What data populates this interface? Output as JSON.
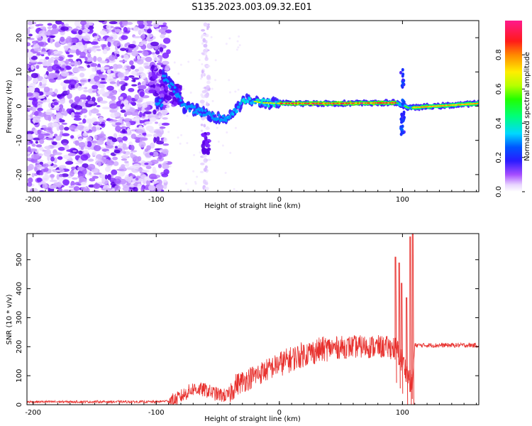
{
  "figure": {
    "title": "S135.2023.003.09.32.E01"
  },
  "chart_data": [
    {
      "type": "heatmap",
      "xlabel": "Height of straight line (km)",
      "ylabel": "Frequency (Hz)",
      "xlim": [
        -205,
        162
      ],
      "ylim": [
        -25,
        25
      ],
      "x_ticks": [
        -200,
        -100,
        0,
        100
      ],
      "y_ticks": [
        -20,
        -10,
        0,
        10,
        20
      ],
      "colorbar": {
        "label": "Normalized spectral amplitude",
        "range": [
          0,
          1
        ],
        "ticks": [
          0.0,
          0.2,
          0.4,
          0.6,
          0.8
        ],
        "colormap": "rainbow (purple-blue-cyan-green-yellow-orange-red-pink)"
      },
      "ridge": [
        {
          "x": -95,
          "freq": 9
        },
        {
          "x": -85,
          "freq": 5
        },
        {
          "x": -78,
          "freq": 0
        },
        {
          "x": -60,
          "freq": -2
        },
        {
          "x": -45,
          "freq": -4
        },
        {
          "x": -35,
          "freq": -1
        },
        {
          "x": -28,
          "freq": 2
        },
        {
          "x": -15,
          "freq": 1
        },
        {
          "x": 0,
          "freq": 0.8
        },
        {
          "x": 50,
          "freq": 0.8
        },
        {
          "x": 95,
          "freq": 1
        },
        {
          "x": 105,
          "freq": -0.5
        },
        {
          "x": 162,
          "freq": 0.8
        }
      ],
      "notes": "Broadband scattered purple noise for x < -90 km; narrowband ridge near 0-1 Hz for x > -30 km reaching amplitude ~1.0; vertical spread near x = 100 km and x = -60 km."
    },
    {
      "type": "line",
      "xlabel": "Height of straight line (km)",
      "ylabel": "SNR (10 * v/v)",
      "xlim": [
        -205,
        162
      ],
      "ylim": [
        0,
        590
      ],
      "x_ticks": [
        -200,
        -100,
        0,
        100
      ],
      "y_ticks": [
        0,
        100,
        200,
        300,
        400,
        500
      ],
      "series": [
        {
          "color": "#e8312e",
          "trend_points": [
            {
              "x": -205,
              "y": 10
            },
            {
              "x": -100,
              "y": 10
            },
            {
              "x": -85,
              "y": 15
            },
            {
              "x": -70,
              "y": 55
            },
            {
              "x": -60,
              "y": 50
            },
            {
              "x": -50,
              "y": 35
            },
            {
              "x": -42,
              "y": 30
            },
            {
              "x": -35,
              "y": 70
            },
            {
              "x": -20,
              "y": 100
            },
            {
              "x": 0,
              "y": 140
            },
            {
              "x": 20,
              "y": 175
            },
            {
              "x": 40,
              "y": 195
            },
            {
              "x": 60,
              "y": 200
            },
            {
              "x": 80,
              "y": 200
            },
            {
              "x": 95,
              "y": 195
            },
            {
              "x": 102,
              "y": 130
            },
            {
              "x": 108,
              "y": 60
            },
            {
              "x": 110,
              "y": 205
            },
            {
              "x": 140,
              "y": 205
            },
            {
              "x": 162,
              "y": 205
            }
          ],
          "spikes": [
            {
              "x": 94,
              "y": 510
            },
            {
              "x": 97,
              "y": 490
            },
            {
              "x": 99,
              "y": 420
            },
            {
              "x": 103,
              "y": 370
            },
            {
              "x": 106,
              "y": 580
            },
            {
              "x": 108,
              "y": 600
            }
          ]
        }
      ]
    }
  ]
}
